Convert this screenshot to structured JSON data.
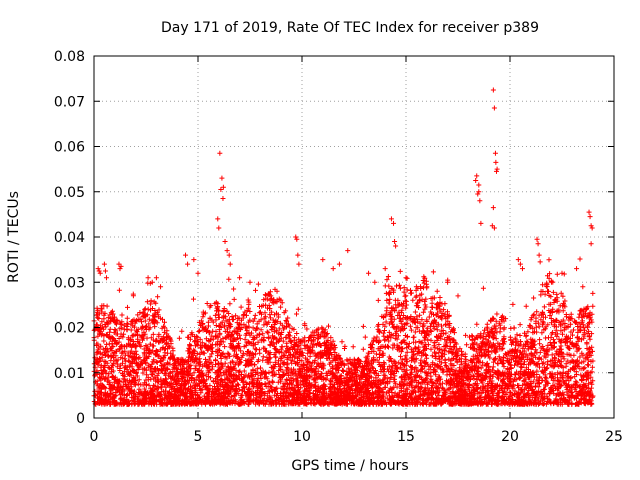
{
  "chart_data": {
    "type": "scatter",
    "title": "Day 171 of 2019, Rate Of TEC Index for receiver p389",
    "xlabel": "GPS time / hours",
    "ylabel": "ROTI / TECUs",
    "xlim": [
      0,
      25
    ],
    "ylim": [
      0,
      0.08
    ],
    "x_ticks": [
      "0",
      "5",
      "10",
      "15",
      "20",
      "25"
    ],
    "y_ticks": [
      "0",
      "0.01",
      "0.02",
      "0.03",
      "0.04",
      "0.05",
      "0.06",
      "0.07",
      "0.08"
    ],
    "grid": true,
    "marker": "+",
    "color": "#ff0000",
    "series": [
      {
        "x": [
          6.05,
          6.1,
          6.15,
          6.2,
          6.22,
          5.95,
          6.0,
          6.3,
          6.4,
          6.5,
          6.55,
          19.2,
          19.25,
          19.3,
          19.32,
          19.35,
          19.38,
          19.15,
          19.2,
          19.25,
          18.35,
          18.4,
          18.45,
          18.5,
          18.5,
          18.55,
          18.6,
          14.3,
          14.4,
          14.45,
          14.5,
          9.7,
          9.75,
          9.8,
          9.85,
          23.8,
          23.85,
          23.9,
          23.95,
          23.9,
          21.3,
          21.35,
          21.4,
          21.45,
          20.4,
          20.5,
          20.6,
          11.0,
          11.5,
          11.8,
          12.2,
          4.4,
          4.5,
          4.8,
          5.0,
          2.6,
          2.8,
          3.0,
          3.2,
          1.2,
          1.3,
          1.25,
          0.2,
          0.25,
          0.3,
          0.5,
          0.55,
          0.6,
          16.0,
          16.5,
          17.0,
          17.5,
          22.0,
          22.5,
          23.2,
          23.5,
          13.2,
          13.5,
          14.0,
          15.0,
          15.5,
          7.0,
          7.5,
          8.5,
          8.8
        ],
        "y": [
          0.0585,
          0.0505,
          0.053,
          0.0485,
          0.051,
          0.044,
          0.042,
          0.039,
          0.037,
          0.036,
          0.034,
          0.0725,
          0.0685,
          0.0585,
          0.0565,
          0.0545,
          0.055,
          0.0425,
          0.0465,
          0.042,
          0.0525,
          0.0535,
          0.0495,
          0.0515,
          0.05,
          0.048,
          0.043,
          0.044,
          0.043,
          0.039,
          0.038,
          0.04,
          0.0395,
          0.036,
          0.034,
          0.0455,
          0.0445,
          0.0425,
          0.042,
          0.0385,
          0.0395,
          0.0385,
          0.036,
          0.0345,
          0.035,
          0.034,
          0.033,
          0.035,
          0.033,
          0.034,
          0.037,
          0.036,
          0.034,
          0.035,
          0.032,
          0.031,
          0.03,
          0.031,
          0.029,
          0.034,
          0.0335,
          0.033,
          0.033,
          0.0325,
          0.032,
          0.034,
          0.0325,
          0.031,
          0.029,
          0.028,
          0.03,
          0.027,
          0.03,
          0.032,
          0.033,
          0.029,
          0.032,
          0.03,
          0.033,
          0.031,
          0.029,
          0.031,
          0.03,
          0.027,
          0.028
        ]
      }
    ]
  }
}
